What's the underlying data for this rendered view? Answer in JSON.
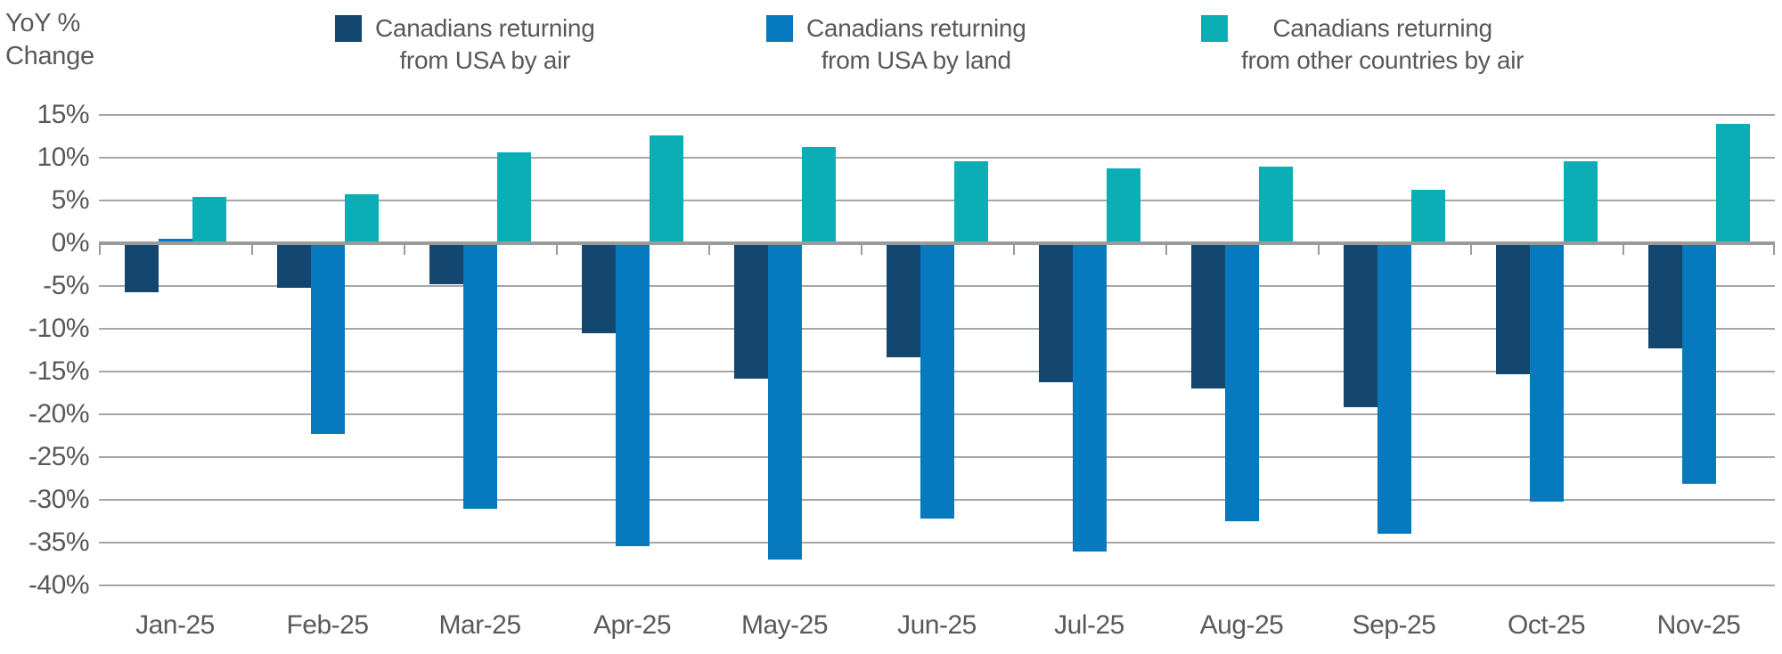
{
  "y_axis_title": {
    "line1": "YoY %",
    "line2": "Change"
  },
  "legend": {
    "items": [
      {
        "line1": "Canadians returning",
        "line2": "from USA by air",
        "color": "#14476F"
      },
      {
        "line1": "Canadians returning",
        "line2": "from USA by land",
        "color": "#0779BE"
      },
      {
        "line1": "Canadians returning",
        "line2": "from other countries by air",
        "color": "#0AAEB4"
      }
    ]
  },
  "chart_data": {
    "type": "bar",
    "title": "",
    "ylabel": "YoY % Change",
    "categories": [
      "Jan-25",
      "Feb-25",
      "Mar-25",
      "Apr-25",
      "May-25",
      "Jun-25",
      "Jul-25",
      "Aug-25",
      "Sep-25",
      "Oct-25",
      "Nov-25"
    ],
    "series": [
      {
        "name": "Canadians returning from USA by air",
        "color": "#14476F",
        "values": [
          -5.7,
          -5.2,
          -4.8,
          -10.5,
          -15.8,
          -13.3,
          -16.2,
          -17.0,
          -19.2,
          -15.3,
          -12.3
        ]
      },
      {
        "name": "Canadians returning from USA by land",
        "color": "#0779BE",
        "values": [
          0.5,
          -22.3,
          -31.0,
          -35.4,
          -37.0,
          -32.2,
          -36.0,
          -32.5,
          -34.0,
          -30.2,
          -28.1
        ]
      },
      {
        "name": "Canadians returning from other countries by air",
        "color": "#0AAEB4",
        "values": [
          5.4,
          5.7,
          10.6,
          12.6,
          11.2,
          9.6,
          8.8,
          9.0,
          6.2,
          9.6,
          14.0
        ]
      }
    ],
    "ylim": [
      -40,
      15
    ],
    "ytick_step": 5,
    "ytick_labels": [
      "15%",
      "10%",
      "5%",
      "0%",
      "-5%",
      "-10%",
      "-15%",
      "-20%",
      "-25%",
      "-30%",
      "-35%",
      "-40%"
    ],
    "grid": true,
    "legend_position": "top",
    "gridline_color": "#A6A6A6",
    "axis_line_color": "#9B9B9B",
    "text_color": "#595959"
  }
}
